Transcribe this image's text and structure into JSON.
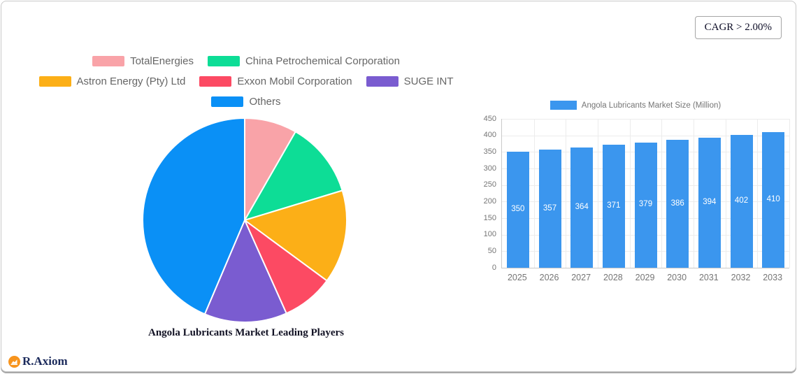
{
  "card": {
    "cagr_label": "CAGR > 2.00%"
  },
  "logo": {
    "text": "R.Axiom",
    "icon": "area-chart-logo-icon",
    "icon_bg": "#F7941D",
    "text_color": "#1B2A5B"
  },
  "chart_data": [
    {
      "type": "pie",
      "title": "Angola Lubricants Market Leading Players",
      "labels": [
        "TotalEnergies",
        "China Petrochemical Corporation",
        "Astron Energy (Pty) Ltd",
        "Exxon Mobil Corporation",
        "SUGE INT",
        "Others"
      ],
      "values_percent": [
        8.3,
        12.0,
        14.8,
        8.2,
        13.1,
        43.6
      ],
      "colors": [
        "#F9A3A8",
        "#0DDD96",
        "#FCAF17",
        "#FC4A63",
        "#7A5CD0",
        "#0A90F6"
      ],
      "legend_rows": [
        [
          0,
          1
        ],
        [
          2,
          3,
          4
        ],
        [
          5
        ]
      ],
      "legend_position": "top",
      "start_angle_deg": 0,
      "direction": "clockwise",
      "slice_border_color": "#FFFFFF"
    },
    {
      "type": "bar",
      "legend": [
        "Angola Lubricants Market Size (Million)"
      ],
      "legend_position": "top",
      "categories": [
        "2025",
        "2026",
        "2027",
        "2028",
        "2029",
        "2030",
        "2031",
        "2032",
        "2033"
      ],
      "values": [
        350,
        357,
        364,
        371,
        379,
        386,
        394,
        402,
        410
      ],
      "bar_color": "#3B96EE",
      "value_label_color": "#FFFFFF",
      "value_label_position": "inside-center",
      "xlabel": "",
      "ylabel": "",
      "ylim": [
        0,
        450
      ],
      "yticks": [
        0,
        50,
        100,
        150,
        200,
        250,
        300,
        350,
        400,
        450
      ],
      "grid": true
    }
  ]
}
